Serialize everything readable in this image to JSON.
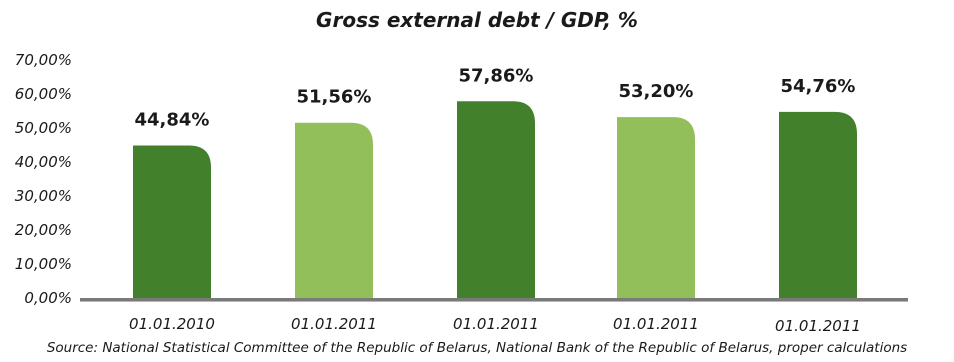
{
  "chart_data": {
    "type": "bar",
    "title": "Gross external debt / GDP, %",
    "categories": [
      "01.01.2010",
      "01.01.2011",
      "01.01.2011",
      "01.01.2011",
      "01.01.2011"
    ],
    "values": [
      44.84,
      51.56,
      57.86,
      53.2,
      54.76
    ],
    "data_labels": [
      "44,84%",
      "51,56%",
      "57,86%",
      "53,20%",
      "54,76%"
    ],
    "bar_colors": [
      "#42802c",
      "#93bf5a",
      "#42802c",
      "#93bf5a",
      "#42802c"
    ],
    "yticks": [
      "0,00%",
      "10,00%",
      "20,00%",
      "30,00%",
      "40,00%",
      "50,00%",
      "60,00%",
      "70,00%"
    ],
    "ylim": [
      0,
      70
    ],
    "grid": false,
    "legend": "none",
    "xlabel": "",
    "ylabel": "",
    "source": "Source: National Statistical Committee of the Republic of Belarus, National Bank of the Republic of Belarus, proper calculations"
  }
}
